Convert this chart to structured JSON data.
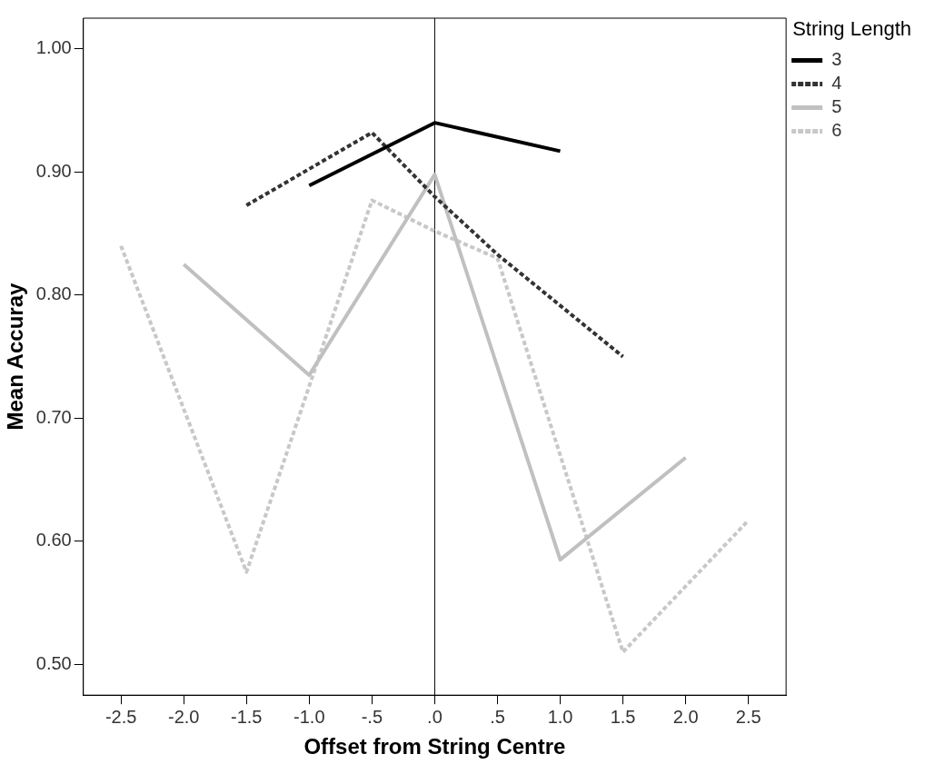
{
  "chart_data": {
    "type": "line",
    "xlabel": "Offset from String Centre",
    "ylabel": "Mean Accuray",
    "legend_title": "String Length",
    "legend": "top right",
    "grid": false,
    "marker": "none",
    "xlim": [
      -2.8,
      2.8
    ],
    "ylim": [
      0.475,
      1.025
    ],
    "xticks": [
      {
        "value": -2.5,
        "label": "-2.5"
      },
      {
        "value": -2.0,
        "label": "-2.0"
      },
      {
        "value": -1.5,
        "label": "-1.5"
      },
      {
        "value": -1.0,
        "label": "-1.0"
      },
      {
        "value": -0.5,
        "label": "-.5"
      },
      {
        "value": 0,
        "label": ".0"
      },
      {
        "value": 0.5,
        "label": ".5"
      },
      {
        "value": 1.0,
        "label": "1.0"
      },
      {
        "value": 1.5,
        "label": "1.5"
      },
      {
        "value": 2.0,
        "label": "2.0"
      },
      {
        "value": 2.5,
        "label": "2.5"
      }
    ],
    "yticks": [
      {
        "value": 0.5,
        "label": "0.50"
      },
      {
        "value": 0.6,
        "label": "0.60"
      },
      {
        "value": 0.7,
        "label": "0.70"
      },
      {
        "value": 0.8,
        "label": "0.80"
      },
      {
        "value": 0.9,
        "label": "0.90"
      },
      {
        "value": 1.0,
        "label": "1.00"
      }
    ],
    "ref_lines": [
      {
        "axis": "x",
        "value": 0,
        "color": "#000000"
      }
    ],
    "series": [
      {
        "name": "3",
        "color": "#000000",
        "line_style": "solid",
        "x": [
          -1,
          0,
          1
        ],
        "values": [
          0.889,
          0.94,
          0.917
        ]
      },
      {
        "name": "4",
        "color": "#333333",
        "line_style": "dotted",
        "x": [
          -1.5,
          -0.5,
          0,
          0.5,
          1.5
        ],
        "values": [
          0.873,
          0.932,
          0.88,
          0.833,
          0.75
        ]
      },
      {
        "name": "5",
        "color": "#c0c0c0",
        "line_style": "solid",
        "x": [
          -2,
          -1,
          0,
          1,
          2
        ],
        "values": [
          0.825,
          0.735,
          0.898,
          0.585,
          0.668
        ]
      },
      {
        "name": "6",
        "color": "#c8c8c8",
        "line_style": "dotted",
        "x": [
          -2.5,
          -1.5,
          -0.5,
          0,
          0.5,
          1.5,
          2.5
        ],
        "values": [
          0.84,
          0.575,
          0.877,
          0.852,
          0.83,
          0.51,
          0.617
        ]
      }
    ]
  }
}
